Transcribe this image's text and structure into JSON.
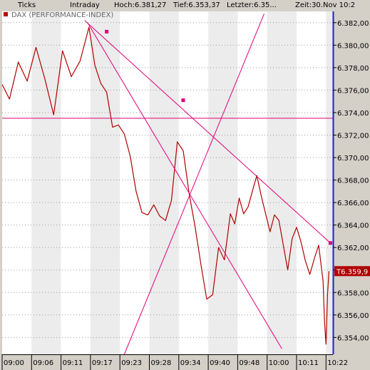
{
  "header": {
    "resolution": "Ticks",
    "period": "Intraday",
    "high": "Hoch:6.381,27",
    "low": "Tief:6.353,37",
    "last": "Letzter:6.35...",
    "time": "Zeit:30.Nov 10:2"
  },
  "chart_data": {
    "type": "line",
    "title": "DAX (PERFORMANCE-INDEX)",
    "last_price_label": "T6.359,9",
    "xlabel": "",
    "ylabel": "",
    "ylim": [
      6352.5,
      6383.0
    ],
    "grid": true,
    "x_ticks": [
      "09:00",
      "09:06",
      "09:11",
      "09:17",
      "09:23",
      "09:28",
      "09:34",
      "09:40",
      "09:48",
      "10:00",
      "10:11",
      "10:22"
    ],
    "y_ticks": [
      6354,
      6356,
      6358,
      6360,
      6362,
      6364,
      6366,
      6368,
      6370,
      6372,
      6374,
      6376,
      6378,
      6380,
      6382
    ],
    "y_tick_labels": [
      "6.354,00",
      "6.356,00",
      "6.358,00",
      "6.360,00",
      "6.362,00",
      "6.364,00",
      "6.366,00",
      "6.368,00",
      "6.370,00",
      "6.372,00",
      "6.374,00",
      "6.376,00",
      "6.378,00",
      "6.380,00",
      "6.382,00"
    ],
    "series": [
      {
        "color": "#b00000",
        "x_index": [
          0.0,
          0.25,
          0.55,
          0.85,
          1.15,
          1.45,
          1.75,
          2.05,
          2.35,
          2.65,
          2.95,
          3.15,
          3.35,
          3.55,
          3.75,
          3.95,
          4.15,
          4.35,
          4.55,
          4.75,
          4.95,
          5.15,
          5.35,
          5.55,
          5.75,
          5.95,
          6.15,
          6.35,
          6.55,
          6.75,
          6.95,
          7.15,
          7.35,
          7.55,
          7.75,
          7.9,
          8.05,
          8.2,
          8.35,
          8.5,
          8.65,
          8.8,
          8.95,
          9.1,
          9.25,
          9.4,
          9.55,
          9.7,
          9.85,
          10.0,
          10.15,
          10.3,
          10.45,
          10.6,
          10.75,
          10.9,
          10.95,
          11.0,
          11.05,
          11.1
        ],
        "values": [
          6376.5,
          6375.2,
          6378.5,
          6376.8,
          6379.8,
          6377.0,
          6373.8,
          6379.5,
          6377.2,
          6378.6,
          6381.6,
          6378.2,
          6376.6,
          6375.8,
          6372.7,
          6372.9,
          6372.1,
          6370.1,
          6367.0,
          6365.1,
          6364.9,
          6365.8,
          6364.8,
          6364.4,
          6366.2,
          6371.4,
          6370.6,
          6366.8,
          6363.9,
          6360.5,
          6357.4,
          6357.8,
          6362.0,
          6360.9,
          6365.0,
          6364.1,
          6366.4,
          6365.0,
          6365.6,
          6367.0,
          6368.4,
          6366.6,
          6365.0,
          6363.4,
          6364.9,
          6364.4,
          6362.2,
          6360.0,
          6362.8,
          6363.8,
          6362.5,
          6360.8,
          6359.6,
          6361.0,
          6362.2,
          6359.0,
          6355.4,
          6353.4,
          6357.8,
          6359.9
        ]
      }
    ],
    "annotations": [
      {
        "kind": "hline",
        "y": 6373.5,
        "color": "#e0007a"
      },
      {
        "kind": "trendline",
        "x_index": [
          2.8,
          11.15
        ],
        "values": [
          6382.2,
          6362.4
        ],
        "color": "#e0007a"
      },
      {
        "kind": "trendline",
        "x_index": [
          2.9,
          9.5
        ],
        "values": [
          6382.0,
          6353.0
        ],
        "color": "#e0007a"
      },
      {
        "kind": "trendline",
        "x_index": [
          4.15,
          8.9
        ],
        "values": [
          6352.5,
          6382.8
        ],
        "color": "#e0007a"
      },
      {
        "kind": "marker",
        "x_index": 3.55,
        "value": 6381.2,
        "color": "#e0007a"
      },
      {
        "kind": "marker",
        "x_index": 6.15,
        "value": 6375.1,
        "color": "#e0007a"
      },
      {
        "kind": "marker",
        "x_index": 11.15,
        "value": 6362.4,
        "color": "#e0007a"
      }
    ]
  },
  "colors": {
    "background": "#ffffff",
    "stripe": "#ececec",
    "grid_dot": "#999999",
    "series": "#b00000",
    "drawing": "#e0007a",
    "axis_line": "#2020c0",
    "legend_box": "#c00000"
  }
}
